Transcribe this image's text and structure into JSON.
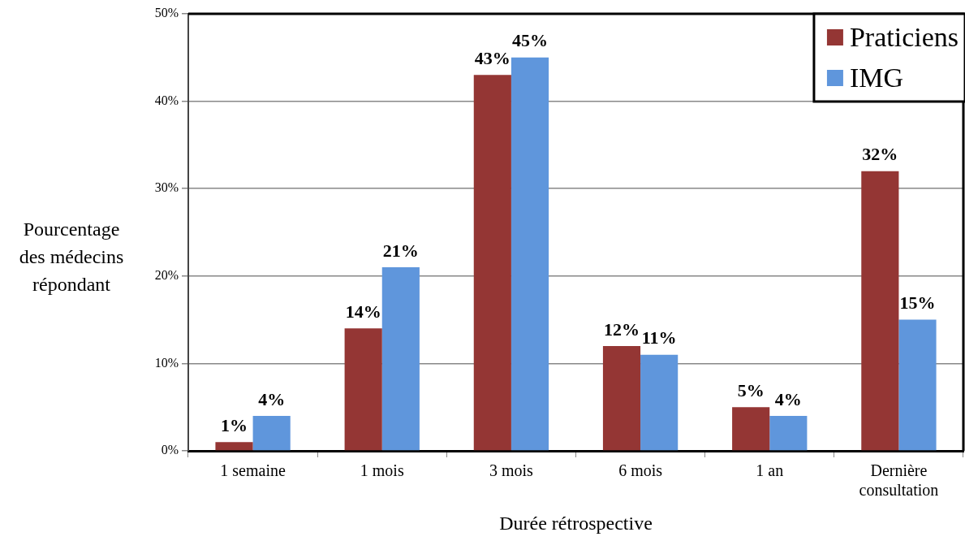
{
  "chart_data": {
    "type": "bar",
    "xlabel": "Durée rétrospective",
    "ylabel": "Pourcentage des médecins répondant",
    "categories": [
      "1 semaine",
      "1 mois",
      "3 mois",
      "6 mois",
      "1 an",
      "Dernière consultation"
    ],
    "series": [
      {
        "name": "Praticiens",
        "color": "#943634",
        "values": [
          1,
          14,
          43,
          12,
          5,
          32
        ],
        "value_labels": [
          "1%",
          "14%",
          "43%",
          "12%",
          "5%",
          "32%"
        ]
      },
      {
        "name": "IMG",
        "color": "#5f96dc",
        "values": [
          4,
          21,
          45,
          11,
          4,
          15
        ],
        "value_labels": [
          "4%",
          "21%",
          "45%",
          "11%",
          "4%",
          "15%"
        ]
      }
    ],
    "ylim": [
      0,
      50
    ],
    "yticks": [
      {
        "value": 0,
        "label": "0%"
      },
      {
        "value": 10,
        "label": "10%"
      },
      {
        "value": 20,
        "label": "20%"
      },
      {
        "value": 30,
        "label": "30%"
      },
      {
        "value": 40,
        "label": "40%"
      },
      {
        "value": 50,
        "label": "50%"
      }
    ],
    "grid": "y",
    "legend": "top right"
  }
}
